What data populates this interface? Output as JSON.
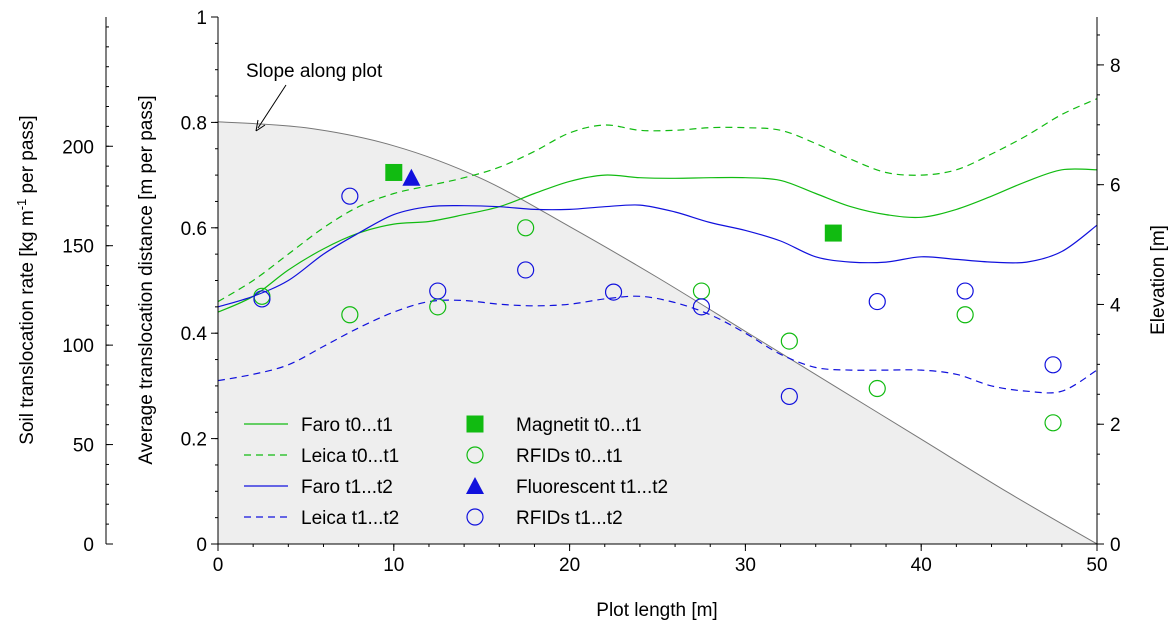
{
  "chart_data": {
    "type": "line",
    "title": "",
    "xlabel": "Plot length [m]",
    "ylabel": "Average translocation distance [m per pass]",
    "ylabel_left_outer": "Soil translocation rate [kg m-1 per pass]",
    "ylabel_right": "Elevation [m]",
    "annotation": "Slope along plot",
    "xlim": [
      0,
      50
    ],
    "ylim": [
      0,
      1
    ],
    "x_ticks": [
      0,
      10,
      20,
      30,
      40,
      50
    ],
    "y_ticks": [
      0,
      0.2,
      0.4,
      0.6,
      0.8,
      1
    ],
    "y_tick_labels": [
      "0",
      "0.2",
      "0.4",
      "0.6",
      "0.8",
      "1"
    ],
    "outer_axis": {
      "range": [
        0,
        265
      ],
      "ticks": [
        0,
        50,
        100,
        150,
        200
      ],
      "tick_labels": [
        "0",
        "50",
        "100",
        "150",
        "200"
      ]
    },
    "right_axis": {
      "range": [
        0,
        8.8
      ],
      "ticks": [
        0,
        2,
        4,
        6,
        8
      ],
      "tick_labels": [
        "0",
        "2",
        "4",
        "6",
        "8"
      ]
    },
    "grid": false,
    "legend_position": "bottom-left",
    "colors": {
      "green": "#11bb11",
      "blue": "#1111dd",
      "slope_fill": "#eeeeee",
      "slope_line": "#777777"
    },
    "series": [
      {
        "name": "Faro t0...t1",
        "style": "solid",
        "color": "green",
        "x": [
          0,
          2,
          4,
          6,
          8,
          10,
          12,
          14,
          16,
          18,
          20,
          22,
          24,
          26,
          28,
          30,
          32,
          34,
          36,
          38,
          40,
          42,
          44,
          46,
          48,
          50
        ],
        "y": [
          0.44,
          0.47,
          0.52,
          0.56,
          0.59,
          0.607,
          0.612,
          0.625,
          0.64,
          0.665,
          0.688,
          0.7,
          0.695,
          0.694,
          0.695,
          0.695,
          0.69,
          0.665,
          0.64,
          0.625,
          0.62,
          0.635,
          0.66,
          0.688,
          0.71,
          0.71
        ]
      },
      {
        "name": "Leica t0...t1",
        "style": "dashed",
        "color": "green",
        "x": [
          0,
          2,
          4,
          6,
          8,
          10,
          12,
          14,
          16,
          18,
          20,
          22,
          24,
          26,
          28,
          30,
          32,
          34,
          36,
          38,
          40,
          42,
          44,
          46,
          48,
          50
        ],
        "y": [
          0.46,
          0.5,
          0.55,
          0.6,
          0.64,
          0.665,
          0.68,
          0.695,
          0.715,
          0.745,
          0.78,
          0.795,
          0.785,
          0.785,
          0.79,
          0.79,
          0.785,
          0.76,
          0.73,
          0.705,
          0.7,
          0.71,
          0.74,
          0.775,
          0.815,
          0.845
        ]
      },
      {
        "name": "Faro t1...t2",
        "style": "solid",
        "color": "blue",
        "x": [
          0,
          2,
          4,
          6,
          8,
          10,
          12,
          14,
          16,
          18,
          20,
          22,
          24,
          26,
          28,
          30,
          32,
          34,
          36,
          38,
          40,
          42,
          44,
          46,
          48,
          50
        ],
        "y": [
          0.45,
          0.47,
          0.5,
          0.55,
          0.59,
          0.625,
          0.64,
          0.642,
          0.64,
          0.635,
          0.635,
          0.64,
          0.643,
          0.63,
          0.61,
          0.595,
          0.575,
          0.545,
          0.535,
          0.535,
          0.545,
          0.54,
          0.535,
          0.535,
          0.555,
          0.605
        ]
      },
      {
        "name": "Leica t1...t2",
        "style": "dashed",
        "color": "blue",
        "x": [
          0,
          2,
          4,
          6,
          8,
          10,
          12,
          14,
          16,
          18,
          20,
          22,
          24,
          26,
          28,
          30,
          32,
          34,
          36,
          38,
          40,
          42,
          44,
          46,
          48,
          50
        ],
        "y": [
          0.31,
          0.322,
          0.34,
          0.375,
          0.41,
          0.44,
          0.46,
          0.462,
          0.455,
          0.452,
          0.455,
          0.465,
          0.47,
          0.458,
          0.435,
          0.4,
          0.36,
          0.335,
          0.33,
          0.33,
          0.33,
          0.322,
          0.3,
          0.29,
          0.29,
          0.33
        ]
      },
      {
        "name": "Magnetit t0...t1",
        "marker": "square-filled",
        "color": "green",
        "x": [
          10,
          35
        ],
        "y": [
          0.705,
          0.59
        ]
      },
      {
        "name": "RFIDs t0...t1",
        "marker": "circle-open",
        "color": "green",
        "x": [
          2.5,
          7.5,
          12.5,
          17.5,
          27.5,
          32.5,
          37.5,
          42.5,
          47.5
        ],
        "y": [
          0.47,
          0.435,
          0.45,
          0.6,
          0.48,
          0.385,
          0.295,
          0.435,
          0.23
        ]
      },
      {
        "name": "Fluorescent t1...t2",
        "marker": "triangle-filled",
        "color": "blue",
        "x": [
          11
        ],
        "y": [
          0.695
        ]
      },
      {
        "name": "RFIDs t1...t2",
        "marker": "circle-open",
        "color": "blue",
        "x": [
          2.5,
          7.5,
          12.5,
          17.5,
          22.5,
          27.5,
          32.5,
          37.5,
          42.5,
          47.5
        ],
        "y": [
          0.465,
          0.66,
          0.48,
          0.52,
          0.478,
          0.45,
          0.28,
          0.46,
          0.48,
          0.34
        ]
      }
    ],
    "slope_profile": {
      "x": [
        0,
        5,
        10,
        15,
        20,
        25,
        30,
        35,
        40,
        45,
        50
      ],
      "elevation": [
        7.05,
        6.95,
        6.65,
        6.1,
        5.3,
        4.45,
        3.55,
        2.65,
        1.75,
        0.85,
        0
      ]
    }
  }
}
